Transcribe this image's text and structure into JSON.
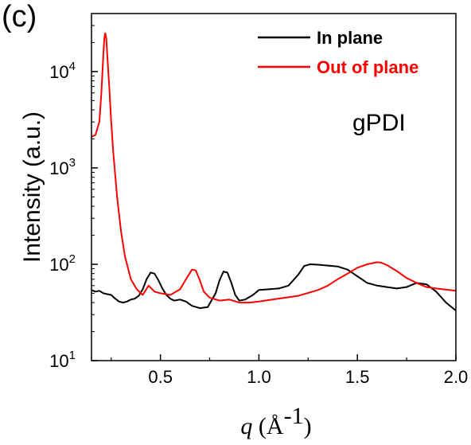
{
  "panel_label": "(c)",
  "chart_data": {
    "type": "line",
    "title": "",
    "xlabel_var": "q",
    "xlabel_unit": " (Å",
    "xlabel_exp": "-1",
    "xlabel_close": ")",
    "ylabel": "Intensity (a.u.)",
    "yscale": "log",
    "xlim": [
      0.15,
      2.0
    ],
    "ylim": [
      10,
      40000
    ],
    "xticks": [
      {
        "value": 0.5,
        "label": "0.5"
      },
      {
        "value": 1.0,
        "label": "1.0"
      },
      {
        "value": 1.5,
        "label": "1.5"
      },
      {
        "value": 2.0,
        "label": "2.0"
      }
    ],
    "yticks": [
      {
        "value": 10,
        "base": "10",
        "exp": "1"
      },
      {
        "value": 100,
        "base": "10",
        "exp": "2"
      },
      {
        "value": 1000,
        "base": "10",
        "exp": "3"
      },
      {
        "value": 10000,
        "base": "10",
        "exp": "4"
      }
    ],
    "legend_position": "top-right",
    "annotation": "gPDI",
    "series": [
      {
        "name": "In plane",
        "color": "#000000",
        "x": [
          0.15,
          0.17,
          0.19,
          0.21,
          0.23,
          0.25,
          0.27,
          0.29,
          0.31,
          0.33,
          0.35,
          0.37,
          0.39,
          0.41,
          0.43,
          0.45,
          0.47,
          0.49,
          0.51,
          0.53,
          0.55,
          0.57,
          0.6,
          0.63,
          0.66,
          0.7,
          0.74,
          0.78,
          0.8,
          0.82,
          0.84,
          0.86,
          0.88,
          0.9,
          0.93,
          0.97,
          1.0,
          1.05,
          1.1,
          1.15,
          1.2,
          1.23,
          1.26,
          1.3,
          1.35,
          1.4,
          1.45,
          1.5,
          1.55,
          1.6,
          1.65,
          1.7,
          1.75,
          1.8,
          1.85,
          1.9,
          1.95,
          2.0
        ],
        "y": [
          54,
          52,
          53,
          50,
          49,
          48,
          44,
          41,
          40,
          41,
          43,
          44,
          47,
          55,
          70,
          82,
          80,
          68,
          56,
          48,
          44,
          42,
          43,
          41,
          37,
          35,
          36,
          50,
          68,
          84,
          82,
          64,
          48,
          42,
          43,
          48,
          54,
          55,
          56,
          60,
          78,
          96,
          100,
          99,
          97,
          95,
          88,
          75,
          64,
          60,
          58,
          56,
          58,
          64,
          62,
          52,
          40,
          33
        ]
      },
      {
        "name": "Out of plane",
        "color": "#ff0000",
        "x": [
          0.15,
          0.17,
          0.19,
          0.2,
          0.21,
          0.215,
          0.22,
          0.225,
          0.23,
          0.24,
          0.25,
          0.26,
          0.28,
          0.3,
          0.32,
          0.35,
          0.38,
          0.41,
          0.44,
          0.47,
          0.5,
          0.55,
          0.6,
          0.63,
          0.66,
          0.68,
          0.7,
          0.72,
          0.75,
          0.8,
          0.85,
          0.9,
          0.95,
          1.0,
          1.1,
          1.2,
          1.3,
          1.35,
          1.4,
          1.45,
          1.5,
          1.55,
          1.6,
          1.62,
          1.65,
          1.7,
          1.75,
          1.8,
          1.85,
          1.9,
          2.0
        ],
        "y": [
          2100,
          2200,
          3000,
          6000,
          15000,
          22000,
          25000,
          22000,
          15000,
          7000,
          3000,
          1500,
          500,
          220,
          120,
          70,
          55,
          48,
          60,
          52,
          50,
          48,
          55,
          70,
          88,
          86,
          68,
          52,
          45,
          42,
          43,
          40,
          40,
          41,
          44,
          47,
          54,
          60,
          70,
          80,
          92,
          100,
          105,
          104,
          98,
          85,
          72,
          64,
          58,
          56,
          53
        ]
      }
    ]
  }
}
